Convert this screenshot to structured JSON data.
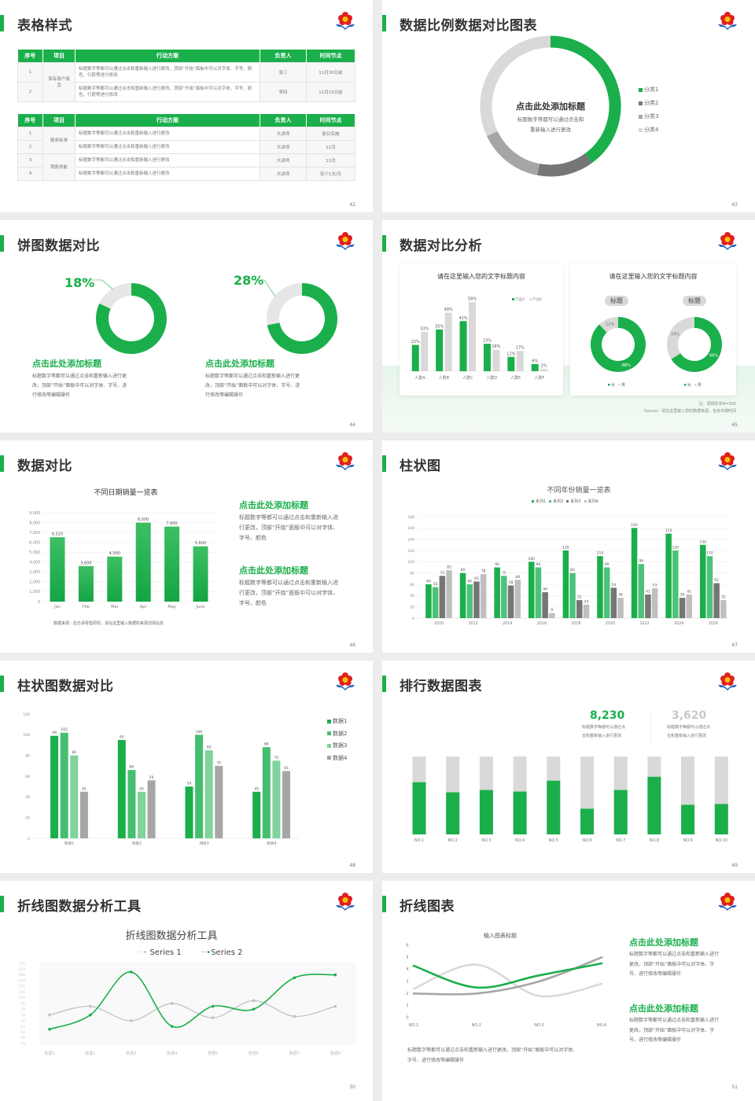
{
  "colors": {
    "accent": "#1aaf4b",
    "gray_dark": "#767676",
    "gray_mid": "#a6a6a6",
    "gray_light": "#d9d9d9"
  },
  "slides": [
    {
      "title": "表格样式",
      "page": "42",
      "table1": {
        "headers": [
          "序号",
          "项目",
          "行动方案",
          "负责人",
          "时间节点"
        ],
        "project": "保有客户激活",
        "rows": [
          [
            "1",
            "标题数字等都可以通过点击和重新输入进行更改，顶部“开始”面板中可以对字体、字号、颜色、行距等进行修改",
            "张三",
            "11月30日前"
          ],
          [
            "2",
            "标题数字等都可以通过点击和重新输入进行更改，顶部“开始”面板中可以对字体、字号、颜色、行距等进行修改",
            "李四",
            "11月15日前"
          ]
        ]
      },
      "table2": {
        "headers": [
          "序号",
          "项目",
          "行动方案",
          "负责人",
          "时间节点"
        ],
        "projects": [
          "服务标准",
          "销售技能"
        ],
        "rows": [
          [
            "1",
            "标题数字等都可以通过点击和重新输入进行更改",
            "大讲师",
            "即日实施"
          ],
          [
            "2",
            "标题数字等都可以通过点击和重新输入进行更改",
            "大讲师",
            "11月"
          ],
          [
            "3",
            "标题数字等都可以通过点击和重新输入进行更改",
            "大讲师",
            "11月"
          ],
          [
            "4",
            "标题数字等都可以通过点击和重新输入进行更改",
            "大讲师",
            "至少1次/月"
          ]
        ]
      }
    },
    {
      "title": "数据比例数据对比图表",
      "page": "43",
      "center_title": "点击此处添加标题",
      "center_lines": [
        "标题数字等都可以通过点击和",
        "重新输入进行更改"
      ]
    },
    {
      "title": "饼图数据对比",
      "page": "44",
      "blocks": [
        {
          "pct": "18%",
          "heading": "点击此处添加标题",
          "lines": [
            "标题数字等都可以通过点击和重新输入进行更",
            "改，顶部“开始”面板中可以对字体、字号、进",
            "行修改等编辑操作"
          ]
        },
        {
          "pct": "28%",
          "heading": "点击此处添加标题",
          "lines": [
            "标题数字等都可以通过点击和重新输入进行更",
            "改，顶部“开始”面板中可以对字体、字号、进",
            "行修改等编辑操作"
          ]
        }
      ]
    },
    {
      "title": "数据对比分析",
      "page": "45",
      "card_title_left": "请在这里输入您的文字标题内容",
      "card_title_right": "请在这里输入您的文字标题内容",
      "note": "注：调研样本N=500",
      "source": "Source：请在这里输入您的数据来源，包含日期时间"
    },
    {
      "title": "数据对比",
      "page": "46",
      "source": "数据来源：后方添零售研究，请在这里输入数据的来源详情信息",
      "blocks": [
        {
          "heading": "点击此处添加标题",
          "lines": [
            "标题数字等都可以通过点击和重新输入进",
            "行更改，顶部“开始”面板中可以对字体、",
            "字号、颜色"
          ]
        },
        {
          "heading": "点击此处添加标题",
          "lines": [
            "标题数字等都可以通过点击和重新输入进",
            "行更改，顶部“开始”面板中可以对字体、",
            "字号、颜色"
          ]
        }
      ]
    },
    {
      "title": "柱状图",
      "page": "47"
    },
    {
      "title": "柱状图数据对比",
      "page": "48"
    },
    {
      "title": "排行数据图表",
      "page": "49",
      "stats": [
        {
          "value": "8,230",
          "lines": [
            "标题数字等都可以通过点",
            "击和重新输入进行更改"
          ]
        },
        {
          "value": "3,620",
          "lines": [
            "标题数字等都可以通过点",
            "击和重新输入进行更改"
          ]
        }
      ]
    },
    {
      "title": "折线图数据分析工具",
      "page": "50"
    },
    {
      "title": "折线图表",
      "page": "51",
      "bottom_lines": [
        "标题数字等都可以通过点击和重新输入进行更改，顶部“开始”面板中可以对字体、",
        "字号、进行修改等编辑操作"
      ],
      "blocks": [
        {
          "heading": "点击此处添加标题",
          "lines": [
            "标题数字等都可以通过点击和重新输入进行",
            "更改，顶部“开始”面板中可以对字体、字",
            "号、进行修改等编辑操作"
          ]
        },
        {
          "heading": "点击此处添加标题",
          "lines": [
            "标题数字等都可以通过点击和重新输入进行",
            "更改，顶部“开始”面板中可以对字体、字",
            "号、进行修改等编辑操作"
          ]
        }
      ]
    }
  ],
  "chart_data": [
    {
      "type": "pie",
      "donut": true,
      "categories": [
        "分类1",
        "分类2",
        "分类3",
        "分类4"
      ],
      "values": [
        40,
        13,
        15,
        32
      ],
      "colors": [
        "#1aaf4b",
        "#767676",
        "#a6a6a6",
        "#d9d9d9"
      ],
      "legend": "right"
    },
    {
      "type": "pie",
      "donut": true,
      "values": [
        82,
        18
      ],
      "label": "18%",
      "colors": [
        "#1aaf4b",
        "#e6e6e6"
      ]
    },
    {
      "type": "pie",
      "donut": true,
      "values": [
        72,
        28
      ],
      "label": "28%",
      "colors": [
        "#1aaf4b",
        "#e6e6e6"
      ]
    },
    {
      "type": "bar",
      "title": "请在这里输入您的文字标题内容",
      "categories": [
        "人群A",
        "人群B",
        "人群C",
        "人群D",
        "人群E",
        "人群F"
      ],
      "series": [
        {
          "name": "产品A",
          "values": [
            22,
            35,
            42,
            23,
            12,
            6
          ]
        },
        {
          "name": "产品B",
          "values": [
            33,
            49,
            58,
            18,
            17,
            2
          ]
        }
      ],
      "unit": "%",
      "legend": "top-right"
    },
    {
      "type": "pie",
      "donut": true,
      "title": "标题",
      "categories": [
        "女",
        "男"
      ],
      "values": [
        88,
        12
      ],
      "colors": [
        "#1aaf4b",
        "#d9d9d9"
      ],
      "legend": "bottom"
    },
    {
      "type": "pie",
      "donut": true,
      "title": "标题",
      "categories": [
        "女",
        "男"
      ],
      "values": [
        66,
        34
      ],
      "colors": [
        "#1aaf4b",
        "#d9d9d9"
      ],
      "legend": "bottom"
    },
    {
      "type": "bar",
      "title": "不同日期销量一览表",
      "categories": [
        "Jan",
        "Feb",
        "Mar",
        "Apr",
        "May",
        "June"
      ],
      "values": [
        6520,
        3600,
        4560,
        8000,
        7600,
        5600
      ],
      "ylim": [
        0,
        9000
      ],
      "grid": true
    },
    {
      "type": "bar",
      "title": "不同年份销量一览表",
      "categories": [
        "2010",
        "2012",
        "2014",
        "2016",
        "2018",
        "2020",
        "2022",
        "2024",
        "2026"
      ],
      "series": [
        {
          "name": "系列1",
          "values": [
            60,
            80,
            90,
            100,
            120,
            110,
            160,
            150,
            130
          ]
        },
        {
          "name": "系列2",
          "values": [
            55,
            60,
            75,
            90,
            80,
            90,
            96,
            120,
            110
          ]
        },
        {
          "name": "系列3",
          "values": [
            75,
            65,
            58,
            46,
            32,
            54,
            42,
            36,
            62
          ]
        },
        {
          "name": "系列4",
          "values": [
            85,
            78,
            68,
            9,
            24,
            36,
            53,
            42,
            32
          ]
        }
      ],
      "ylim": [
        0,
        180
      ],
      "legend": "top"
    },
    {
      "type": "bar",
      "categories": [
        "项目1",
        "项目2",
        "项目3",
        "项目4"
      ],
      "series": [
        {
          "name": "数据1",
          "values": [
            99,
            95,
            50,
            45
          ]
        },
        {
          "name": "数据2",
          "values": [
            102,
            66,
            100,
            88
          ]
        },
        {
          "name": "数据3",
          "values": [
            80,
            45,
            85,
            75
          ]
        },
        {
          "name": "数据4",
          "values": [
            45,
            56,
            70,
            65
          ]
        }
      ],
      "ylim": [
        0,
        120
      ],
      "legend": "right"
    },
    {
      "type": "bar",
      "stacked": true,
      "categories": [
        "NO.1",
        "NO.2",
        "NO.3",
        "NO.4",
        "NO.5",
        "NO.6",
        "NO.7",
        "NO.8",
        "NO.9",
        "NO.10"
      ],
      "values": [
        0.67,
        0.54,
        0.57,
        0.55,
        0.69,
        0.33,
        0.57,
        0.74,
        0.38,
        0.39
      ]
    },
    {
      "type": "line",
      "title": "折线图数据分析工具",
      "categories": [
        "数据1",
        "数据2",
        "数据3",
        "数据4",
        "数据5",
        "数据6",
        "数据7",
        "数据8"
      ],
      "series": [
        {
          "name": "Series 1",
          "values": [
            50,
            80,
            30,
            90,
            40,
            100,
            45,
            80
          ],
          "color": "#bfbfbf"
        },
        {
          "name": "Series 2",
          "values": [
            0,
            50,
            200,
            10,
            80,
            70,
            180,
            190
          ],
          "color": "#1aaf4b"
        }
      ],
      "ylim": [
        -50,
        230
      ],
      "legend": "top"
    },
    {
      "type": "line",
      "title": "输入图表标题",
      "categories": [
        "NO.1",
        "NO.2",
        "NO.3",
        "NO.4"
      ],
      "series": [
        {
          "values": [
            4.3,
            2.5,
            3.5,
            4.5
          ],
          "color": "#1aaf4b"
        },
        {
          "values": [
            2.4,
            4.4,
            1.8,
            2.8
          ],
          "color": "#d9d9d9"
        },
        {
          "values": [
            2.0,
            2.0,
            3.0,
            5.0
          ],
          "color": "#a6a6a6"
        }
      ],
      "ylim": [
        0,
        6
      ]
    }
  ]
}
